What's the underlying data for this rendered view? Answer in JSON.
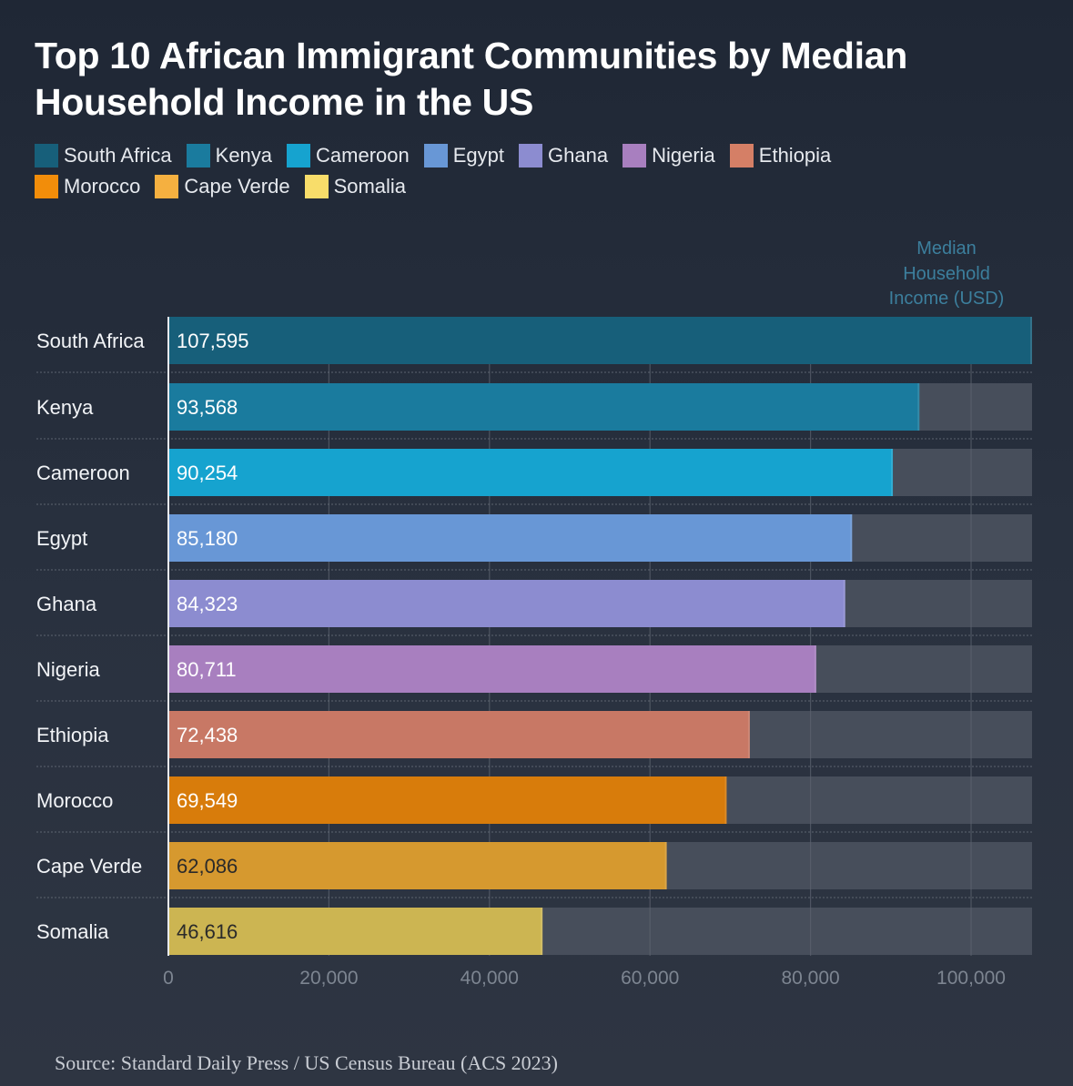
{
  "title": "Top 10 African Immigrant Communities by Median Household Income in the US",
  "source": "Source: Standard Daily Press / US Census Bureau (ACS 2023)",
  "chart_data": {
    "type": "bar",
    "orientation": "horizontal",
    "title": "Top 10 African Immigrant Communities by Median Household Income in the US",
    "xlabel": "Median Household Income (USD)",
    "ylabel": "",
    "xlim": [
      0,
      107595
    ],
    "x_ticks": [
      0,
      20000,
      40000,
      60000,
      80000,
      100000
    ],
    "x_tick_labels": [
      "0",
      "20,000",
      "40,000",
      "60,000",
      "80,000",
      "100,000"
    ],
    "grid": true,
    "legend_position": "top-left",
    "categories": [
      "South Africa",
      "Kenya",
      "Cameroon",
      "Egypt",
      "Ghana",
      "Nigeria",
      "Ethiopia",
      "Morocco",
      "Cape Verde",
      "Somalia"
    ],
    "values": [
      107595,
      93568,
      90254,
      85180,
      84323,
      80711,
      72438,
      69549,
      62086,
      46616
    ],
    "value_labels": [
      "107,595",
      "93,568",
      "90,254",
      "85,180",
      "84,323",
      "80,711",
      "72,438",
      "69,549",
      "62,086",
      "46,616"
    ],
    "colors": [
      "#175f7a",
      "#1a7b9e",
      "#16a3cf",
      "#6897d6",
      "#8c8cd0",
      "#a87fbf",
      "#c87865",
      "#d87c0b",
      "#d6992f",
      "#ccb552"
    ],
    "label_colors": [
      "#ffffff",
      "#ffffff",
      "#ffffff",
      "#ffffff",
      "#ffffff",
      "#ffffff",
      "#ffffff",
      "#ffffff",
      "#2a2a2a",
      "#2a2a2a"
    ],
    "legend": [
      "South Africa",
      "Kenya",
      "Cameroon",
      "Egypt",
      "Ghana",
      "Nigeria",
      "Ethiopia",
      "Morocco",
      "Cape Verde",
      "Somalia"
    ],
    "legend_colors": [
      "#175f7a",
      "#1a7b9e",
      "#16a3cf",
      "#6897d6",
      "#8c8cd0",
      "#a87fbf",
      "#d57f66",
      "#f28d0a",
      "#f5b040",
      "#f8dd6a"
    ]
  }
}
